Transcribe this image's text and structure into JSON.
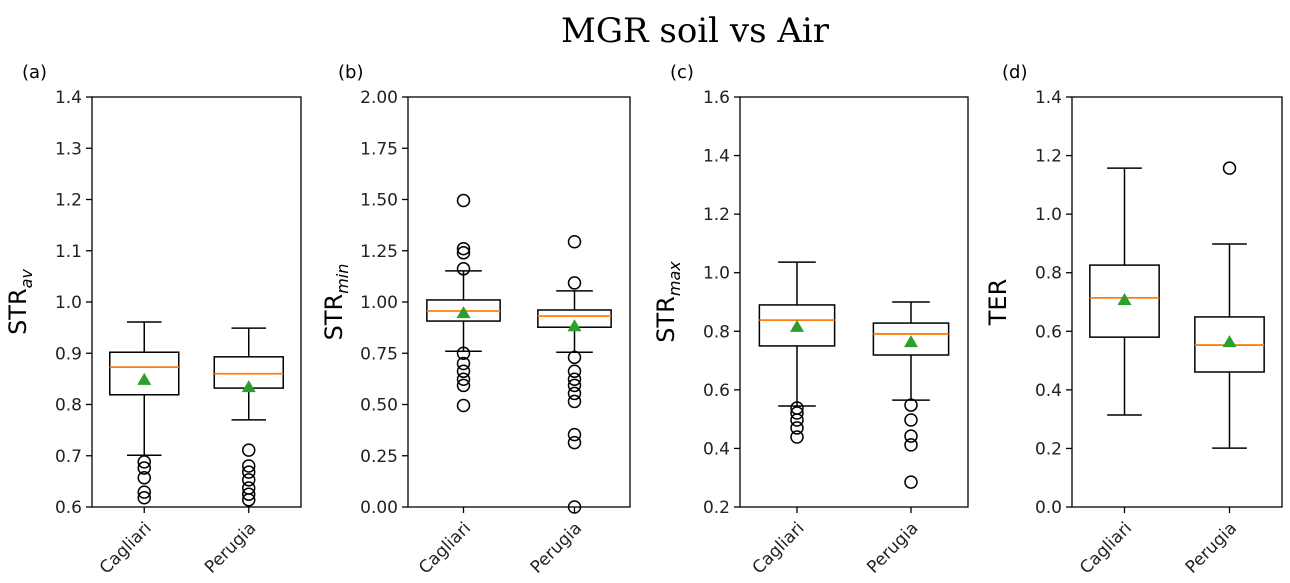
{
  "title": "MGR soil vs Air",
  "chart_data": [
    {
      "type": "box",
      "label": "(a)",
      "ylabel": "STR",
      "ylabel_sub": "av",
      "categories": [
        "Cagliari",
        "Perugia"
      ],
      "boxes": [
        {
          "whislo": 0.701,
          "q1": 0.819,
          "med": 0.873,
          "q3": 0.902,
          "whishi": 0.961,
          "mean": 0.848,
          "fliers": [
            0.688,
            0.676,
            0.657,
            0.629,
            0.618
          ]
        },
        {
          "whislo": 0.77,
          "q1": 0.832,
          "med": 0.86,
          "q3": 0.893,
          "whishi": 0.949,
          "mean": 0.834,
          "fliers": [
            0.711,
            0.68,
            0.668,
            0.653,
            0.637,
            0.625,
            0.614
          ]
        }
      ],
      "ylim": [
        0.6,
        1.4
      ],
      "yticks": [
        0.6,
        0.7,
        0.8,
        0.9,
        {
          "value": 1,
          "label": "1.0"
        },
        1.1,
        1.2,
        1.3,
        1.4
      ],
      "box_color": "#000000",
      "median_color": "#ff7f0e",
      "mean_color": "#2ca02c"
    },
    {
      "type": "box",
      "label": "(b)",
      "ylabel": "STR",
      "ylabel_sub": "min",
      "categories": [
        "Cagliari",
        "Perugia"
      ],
      "boxes": [
        {
          "whislo": 0.76,
          "q1": 0.907,
          "med": 0.956,
          "q3": 1.01,
          "whishi": 1.152,
          "mean": 0.946,
          "fliers": [
            1.495,
            1.26,
            1.24,
            1.162,
            0.75,
            0.7,
            0.662,
            0.623,
            0.593,
            0.495
          ]
        },
        {
          "whislo": 0.755,
          "q1": 0.877,
          "med": 0.931,
          "q3": 0.961,
          "whishi": 1.054,
          "mean": 0.882,
          "fliers": [
            1.294,
            1.093,
            0.73,
            0.662,
            0.623,
            0.593,
            0.554,
            0.515,
            0.353,
            0.314,
            0
          ]
        }
      ],
      "ylim": [
        0,
        2
      ],
      "yticks": [
        {
          "value": 0,
          "label": "0.00"
        },
        0.25,
        {
          "value": 0.5,
          "label": "0.50"
        },
        0.75,
        {
          "value": 1,
          "label": "1.00"
        },
        1.25,
        {
          "value": 1.5,
          "label": "1.50"
        },
        1.75,
        {
          "value": 2,
          "label": "2.00"
        }
      ],
      "box_color": "#000000",
      "median_color": "#ff7f0e",
      "mean_color": "#2ca02c"
    },
    {
      "type": "box",
      "label": "(c)",
      "ylabel": "STR",
      "ylabel_sub": "max",
      "categories": [
        "Cagliari",
        "Perugia"
      ],
      "boxes": [
        {
          "whislo": 0.545,
          "q1": 0.75,
          "med": 0.838,
          "q3": 0.89,
          "whishi": 1.036,
          "mean": 0.815,
          "fliers": [
            0.538,
            0.521,
            0.497,
            0.47,
            0.439
          ]
        },
        {
          "whislo": 0.565,
          "q1": 0.719,
          "med": 0.791,
          "q3": 0.828,
          "whishi": 0.9,
          "mean": 0.763,
          "fliers": [
            0.548,
            0.497,
            0.442,
            0.412,
            0.285
          ]
        }
      ],
      "ylim": [
        0.2,
        1.6
      ],
      "yticks": [
        0.2,
        0.4,
        0.6,
        0.8,
        {
          "value": 1,
          "label": "1.0"
        },
        1.2,
        1.4,
        1.6
      ],
      "box_color": "#000000",
      "median_color": "#ff7f0e",
      "mean_color": "#2ca02c"
    },
    {
      "type": "box",
      "label": "(d)",
      "ylabel": "TER",
      "categories": [
        "Cagliari",
        "Perugia"
      ],
      "boxes": [
        {
          "whislo": 0.314,
          "q1": 0.58,
          "med": 0.714,
          "q3": 0.826,
          "whishi": 1.157,
          "mean": 0.707,
          "fliers": []
        },
        {
          "whislo": 0.201,
          "q1": 0.461,
          "med": 0.553,
          "q3": 0.649,
          "whishi": 0.898,
          "mean": 0.563,
          "fliers": [
            1.157
          ]
        }
      ],
      "ylim": [
        0,
        1.4
      ],
      "yticks": [
        {
          "value": 0,
          "label": "0.0"
        },
        0.2,
        0.4,
        0.6,
        0.8,
        {
          "value": 1,
          "label": "1.0"
        },
        1.2,
        1.4
      ],
      "box_color": "#000000",
      "median_color": "#ff7f0e",
      "mean_color": "#2ca02c"
    }
  ]
}
